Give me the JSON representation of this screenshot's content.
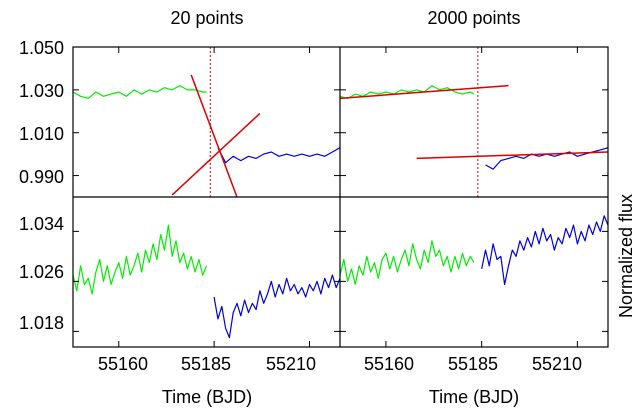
{
  "chart_data": [
    {
      "type": "line",
      "title": "20 points",
      "xlabel": "",
      "ylabel": "",
      "xlim": [
        55148,
        55218
      ],
      "ylim": [
        0.98,
        1.05
      ],
      "y_ticks": [
        "1.050",
        "1.030",
        "1.010",
        "0.990"
      ],
      "vline_x": 55184,
      "series": [
        {
          "color": "#00ee00",
          "x": [
            55148,
            55150,
            55152,
            55154,
            55156,
            55158,
            55160,
            55162,
            55164,
            55166,
            55168,
            55170,
            55172,
            55174,
            55176,
            55178,
            55180,
            55182,
            55183
          ],
          "y": [
            1.029,
            1.027,
            1.026,
            1.029,
            1.027,
            1.028,
            1.029,
            1.027,
            1.03,
            1.028,
            1.03,
            1.029,
            1.031,
            1.03,
            1.032,
            1.03,
            1.03,
            1.029,
            1.029
          ]
        },
        {
          "color": "#0000dd",
          "x": [
            55186,
            55188,
            55190,
            55192,
            55194,
            55196,
            55198,
            55200,
            55202,
            55204,
            55206,
            55208,
            55210,
            55212,
            55214,
            55216,
            55218
          ],
          "y": [
            1.003,
            0.996,
            0.999,
            0.997,
            0.999,
            0.998,
            1.0,
            1.001,
            0.999,
            1.0,
            0.999,
            1.0,
            0.999,
            1.0,
            0.999,
            1.001,
            1.003
          ]
        },
        {
          "color": "#dd0000",
          "x": [
            55179,
            55191
          ],
          "y": [
            1.037,
            0.98
          ]
        },
        {
          "color": "#dd0000",
          "x": [
            55174,
            55197
          ],
          "y": [
            0.981,
            1.019
          ]
        }
      ]
    },
    {
      "type": "line",
      "title": "2000 points",
      "xlabel": "",
      "ylabel": "",
      "xlim": [
        55148,
        55218
      ],
      "ylim": [
        0.98,
        1.05
      ],
      "vline_x": 55184,
      "series": [
        {
          "color": "#00ee00",
          "x": [
            55148,
            55150,
            55152,
            55154,
            55156,
            55158,
            55160,
            55162,
            55164,
            55166,
            55168,
            55170,
            55172,
            55174,
            55176,
            55178,
            55180,
            55182,
            55183
          ],
          "y": [
            1.027,
            1.026,
            1.028,
            1.027,
            1.029,
            1.028,
            1.029,
            1.028,
            1.03,
            1.029,
            1.03,
            1.029,
            1.032,
            1.03,
            1.031,
            1.029,
            1.028,
            1.029,
            1.028
          ]
        },
        {
          "color": "#0000dd",
          "x": [
            55186,
            55188,
            55190,
            55192,
            55194,
            55196,
            55198,
            55200,
            55202,
            55204,
            55206,
            55208,
            55210,
            55212,
            55214,
            55216,
            55218
          ],
          "y": [
            0.995,
            0.993,
            0.997,
            0.998,
            0.999,
            0.998,
            1.0,
            0.999,
            1.0,
            0.999,
            1.0,
            1.001,
            0.999,
            1.0,
            1.001,
            1.002,
            1.003
          ]
        },
        {
          "color": "#dd0000",
          "x": [
            55148,
            55192
          ],
          "y": [
            1.026,
            1.032
          ]
        },
        {
          "color": "#dd0000",
          "x": [
            55168,
            55218
          ],
          "y": [
            0.998,
            1.001
          ]
        }
      ]
    },
    {
      "type": "line",
      "title": "",
      "xlabel": "Time (BJD)",
      "ylabel": "",
      "xlim": [
        55148,
        55218
      ],
      "ylim": [
        1.0155,
        1.0395
      ],
      "x_ticks": [
        "55160",
        "55185",
        "55210"
      ],
      "y_ticks": [
        "1.034",
        "1.026",
        "1.018"
      ],
      "series": [
        {
          "color": "#00ee00",
          "x": [
            55148,
            55149,
            55150,
            55151,
            55152,
            55153,
            55154,
            55155,
            55156,
            55157,
            55158,
            55159,
            55160,
            55161,
            55162,
            55163,
            55164,
            55165,
            55166,
            55167,
            55168,
            55169,
            55170,
            55171,
            55172,
            55173,
            55174,
            55175,
            55176,
            55177,
            55178,
            55179,
            55180,
            55181,
            55182,
            55183
          ],
          "y": [
            1.027,
            1.0245,
            1.0285,
            1.0255,
            1.0265,
            1.024,
            1.0275,
            1.0295,
            1.026,
            1.0285,
            1.0255,
            1.0275,
            1.029,
            1.0265,
            1.03,
            1.027,
            1.0285,
            1.0305,
            1.0275,
            1.031,
            1.029,
            1.032,
            1.0295,
            1.0335,
            1.031,
            1.035,
            1.03,
            1.0325,
            1.029,
            1.0305,
            1.028,
            1.03,
            1.0275,
            1.0295,
            1.027,
            1.0285
          ]
        },
        {
          "color": "#0000dd",
          "x": [
            55185,
            55186,
            55187,
            55188,
            55189,
            55190,
            55191,
            55192,
            55193,
            55194,
            55195,
            55196,
            55197,
            55198,
            55199,
            55200,
            55201,
            55202,
            55203,
            55204,
            55205,
            55206,
            55207,
            55208,
            55209,
            55210,
            55211,
            55212,
            55213,
            55214,
            55215,
            55216,
            55217,
            55218
          ],
          "y": [
            1.0235,
            1.02,
            1.022,
            1.0185,
            1.017,
            1.021,
            1.0225,
            1.0205,
            1.023,
            1.021,
            1.0225,
            1.0215,
            1.0245,
            1.0225,
            1.024,
            1.026,
            1.0235,
            1.0255,
            1.024,
            1.0265,
            1.0245,
            1.0255,
            1.024,
            1.025,
            1.0235,
            1.0255,
            1.0245,
            1.026,
            1.024,
            1.0265,
            1.025,
            1.027,
            1.025,
            1.0265
          ]
        }
      ]
    },
    {
      "type": "line",
      "title": "",
      "xlabel": "Time (BJD)",
      "ylabel": "Normalized flux",
      "xlim": [
        55148,
        55218
      ],
      "ylim": [
        1.0155,
        1.0395
      ],
      "x_ticks": [
        "55160",
        "55185",
        "55210"
      ],
      "series": [
        {
          "color": "#00ee00",
          "x": [
            55148,
            55149,
            55150,
            55151,
            55152,
            55153,
            55154,
            55155,
            55156,
            55157,
            55158,
            55159,
            55160,
            55161,
            55162,
            55163,
            55164,
            55165,
            55166,
            55167,
            55168,
            55169,
            55170,
            55171,
            55172,
            55173,
            55174,
            55175,
            55176,
            55177,
            55178,
            55179,
            55180,
            55181,
            55182,
            55183
          ],
          "y": [
            1.027,
            1.0295,
            1.026,
            1.028,
            1.0255,
            1.0285,
            1.027,
            1.03,
            1.0275,
            1.029,
            1.0265,
            1.0295,
            1.0305,
            1.028,
            1.03,
            1.0275,
            1.0295,
            1.031,
            1.0285,
            1.032,
            1.0295,
            1.028,
            1.031,
            1.029,
            1.0325,
            1.03,
            1.031,
            1.0285,
            1.03,
            1.0275,
            1.03,
            1.028,
            1.0305,
            1.0285,
            1.03,
            1.029
          ]
        },
        {
          "color": "#0000dd",
          "x": [
            55185,
            55186,
            55187,
            55188,
            55189,
            55190,
            55191,
            55192,
            55193,
            55194,
            55195,
            55196,
            55197,
            55198,
            55199,
            55200,
            55201,
            55202,
            55203,
            55204,
            55205,
            55206,
            55207,
            55208,
            55209,
            55210,
            55211,
            55212,
            55213,
            55214,
            55215,
            55216,
            55217,
            55218
          ],
          "y": [
            1.028,
            1.031,
            1.0285,
            1.032,
            1.0295,
            1.03,
            1.0255,
            1.0285,
            1.031,
            1.03,
            1.0325,
            1.031,
            1.033,
            1.0315,
            1.034,
            1.032,
            1.0345,
            1.0325,
            1.0335,
            1.031,
            1.033,
            1.032,
            1.0345,
            1.033,
            1.035,
            1.032,
            1.034,
            1.0325,
            1.035,
            1.0335,
            1.0355,
            1.034,
            1.0365,
            1.035
          ]
        }
      ]
    }
  ]
}
